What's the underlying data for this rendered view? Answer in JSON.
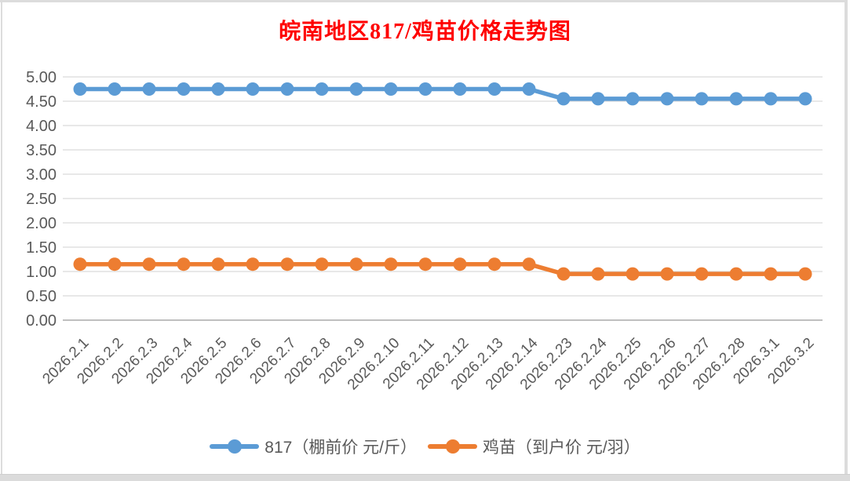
{
  "chart_data": {
    "type": "line",
    "title": "皖南地区817/鸡苗价格走势图",
    "title_color": "#FF0000",
    "categories": [
      "2026.2.1",
      "2026.2.2",
      "2026.2.3",
      "2026.2.4",
      "2026.2.5",
      "2026.2.6",
      "2026.2.7",
      "2026.2.8",
      "2026.2.9",
      "2026.2.10",
      "2026.2.11",
      "2026.2.12",
      "2026.2.13",
      "2026.2.14",
      "2026.2.23",
      "2026.2.24",
      "2026.2.25",
      "2026.2.26",
      "2026.2.27",
      "2026.2.28",
      "2026.3.1",
      "2026.3.2"
    ],
    "series": [
      {
        "name": "817（棚前价 元/斤）",
        "color": "#5B9BD5",
        "values": [
          4.75,
          4.75,
          4.75,
          4.75,
          4.75,
          4.75,
          4.75,
          4.75,
          4.75,
          4.75,
          4.75,
          4.75,
          4.75,
          4.75,
          4.55,
          4.55,
          4.55,
          4.55,
          4.55,
          4.55,
          4.55,
          4.55
        ]
      },
      {
        "name": "鸡苗（到户价 元/羽）",
        "color": "#ED7D31",
        "values": [
          1.15,
          1.15,
          1.15,
          1.15,
          1.15,
          1.15,
          1.15,
          1.15,
          1.15,
          1.15,
          1.15,
          1.15,
          1.15,
          1.15,
          0.95,
          0.95,
          0.95,
          0.95,
          0.95,
          0.95,
          0.95,
          0.95
        ]
      }
    ],
    "xlabel": "",
    "ylabel": "",
    "ylim": [
      0,
      5
    ],
    "ytick_labels": [
      "0.00",
      "0.50",
      "1.00",
      "1.50",
      "2.00",
      "2.50",
      "3.00",
      "3.50",
      "4.00",
      "4.50",
      "5.00"
    ],
    "grid": true,
    "legend_position": "bottom",
    "label_color": "#595959",
    "gridline_color": "#D9D9D9",
    "axisline_color": "#BFBFBF"
  }
}
